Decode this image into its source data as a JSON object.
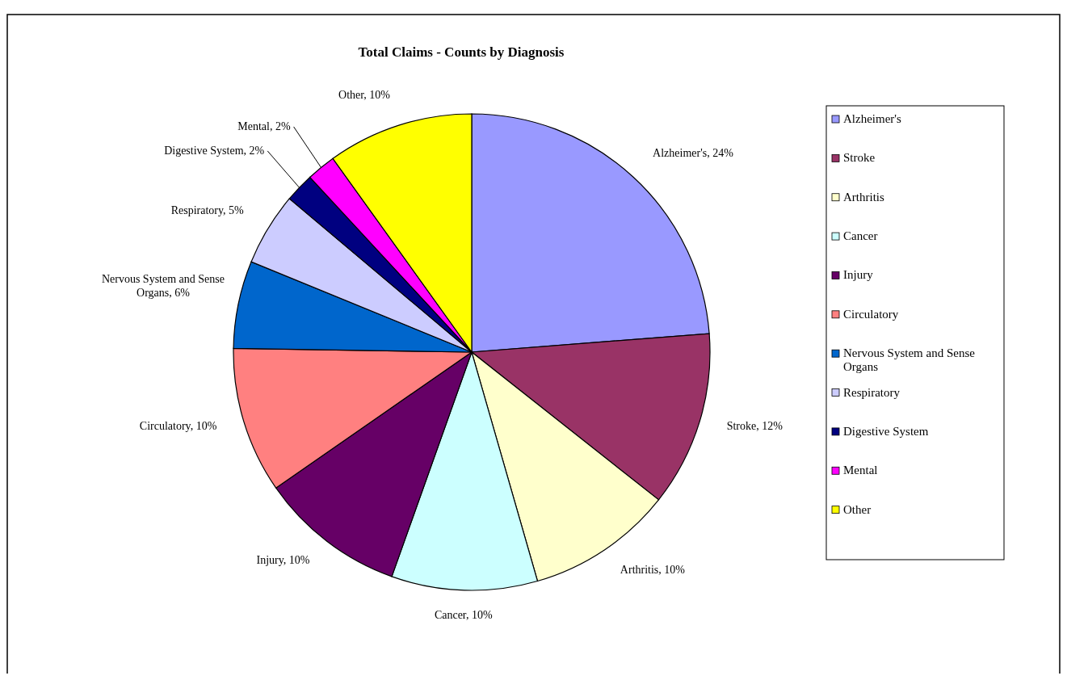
{
  "chart_data": {
    "type": "pie",
    "title": "Total Claims - Counts by Diagnosis",
    "categories": [
      "Alzheimer's",
      "Stroke",
      "Arthritis",
      "Cancer",
      "Injury",
      "Circulatory",
      "Nervous System and Sense Organs",
      "Respiratory",
      "Digestive System",
      "Mental",
      "Other"
    ],
    "values": [
      24,
      12,
      10,
      10,
      10,
      10,
      6,
      5,
      2,
      2,
      10
    ],
    "colors": [
      "#9999ff",
      "#993366",
      "#ffffcc",
      "#ccffff",
      "#660066",
      "#ff8080",
      "#0066cc",
      "#ccccff",
      "#000080",
      "#ff00ff",
      "#ffff00"
    ],
    "value_labels": [
      "Alzheimer's, 24%",
      "Stroke, 12%",
      "Arthritis, 10%",
      "Cancer, 10%",
      "Injury, 10%",
      "Circulatory, 10%",
      "Nervous System and Sense Organs, 6%",
      "Respiratory, 5%",
      "Digestive System, 2%",
      "Mental, 2%",
      "Other, 10%"
    ],
    "legend": "right"
  }
}
